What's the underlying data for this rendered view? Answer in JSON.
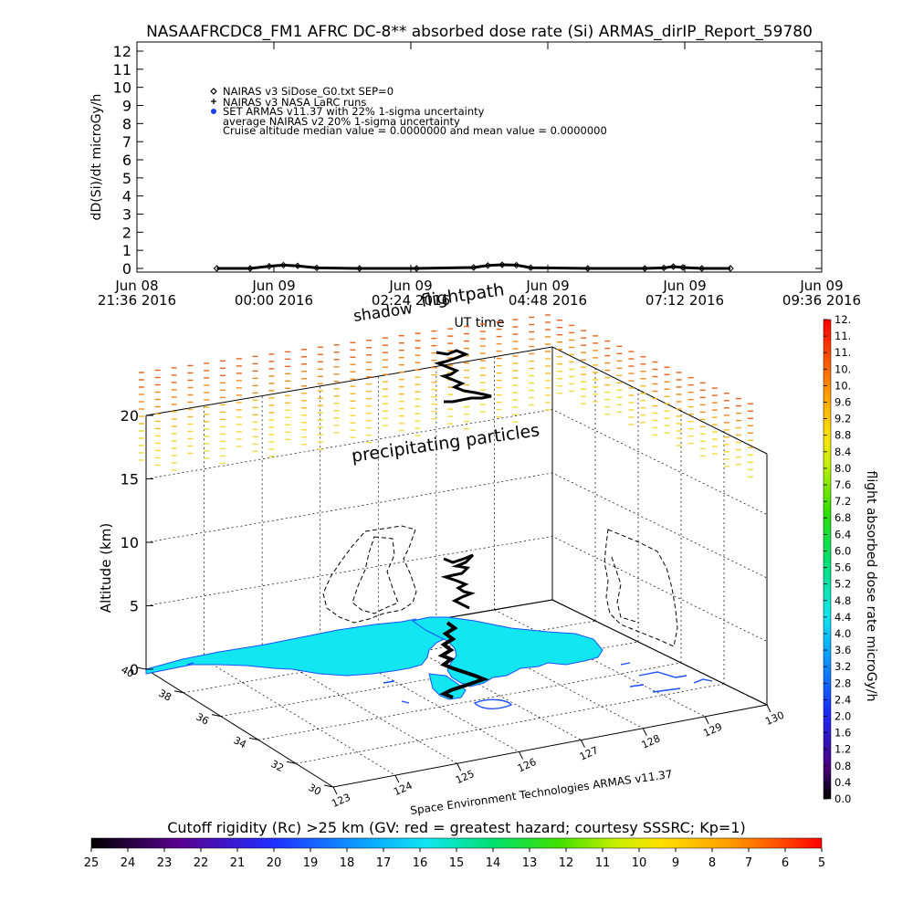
{
  "title": "NASAAFRCDC8_FM1 AFRC DC-8** absorbed dose rate (Si) ARMAS_dirIP_Report_59780",
  "top_panel": {
    "ylabel": "dD(Si)/dt microGy/h",
    "xlabel": "UT time",
    "legend": [
      "NAIRAS v3 SiDose_G0.txt SEP=0",
      "NAIRAS v3 NASA LaRC runs",
      "SET ARMAS v11.37 with 22% 1-sigma uncertainty",
      "average NAIRAS v2 20% 1-sigma uncertainty",
      "Cruise altitude median value = 0.0000000 and mean value = 0.0000000"
    ],
    "legend_markers": [
      "diamond",
      "plus",
      "dot"
    ],
    "legend_marker_colors": [
      "#000000",
      "#000000",
      "#1f3fff"
    ]
  },
  "scene_3d": {
    "zlabel": "Altitude (km)",
    "z_ticks": [
      "0",
      "5",
      "10",
      "15",
      "20"
    ],
    "lat_ticks": [
      "30",
      "32",
      "34",
      "36",
      "38",
      "40"
    ],
    "lon_ticks": [
      "123",
      "124",
      "125",
      "126",
      "127",
      "128",
      "129",
      "130"
    ],
    "annotations": {
      "shadow": "shadow",
      "flightpath": "flightpath",
      "precipitating": "precipitating particles",
      "credit": "Space Environment Technologies ARMAS v11.37"
    },
    "land_color": "#11e6f2",
    "coast_color": "#1a4fff"
  },
  "dose_colorbar": {
    "label": "flight absorbed dose rate microGy/h",
    "ticks": [
      "0.0",
      "0.4",
      "0.8",
      "1.2",
      "1.6",
      "2.0",
      "2.4",
      "2.8",
      "3.2",
      "3.6",
      "4.0",
      "4.4",
      "4.8",
      "5.2",
      "5.6",
      "6.0",
      "6.4",
      "6.8",
      "7.2",
      "7.6",
      "8.0",
      "8.4",
      "8.8",
      "9.2",
      "9.6",
      "10.",
      "10.",
      "11.",
      "11.",
      "12."
    ]
  },
  "rc_colorbar": {
    "label": "Cutoff rigidity (Rc) >25 km (GV: red = greatest hazard; courtesy SSSRC; Kp=1)",
    "ticks": [
      "25",
      "24",
      "23",
      "22",
      "21",
      "20",
      "19",
      "18",
      "17",
      "16",
      "15",
      "14",
      "13",
      "12",
      "11",
      "10",
      "9",
      "8",
      "7",
      "6",
      "5"
    ]
  },
  "chart_data": {
    "type": "line",
    "title": "NASAAFRCDC8_FM1 AFRC DC-8** absorbed dose rate (Si) ARMAS_dirIP_Report_59780",
    "xlabel": "UT time",
    "ylabel": "dD(Si)/dt microGy/h",
    "ylim": [
      0,
      12
    ],
    "y_ticks": [
      0,
      1,
      2,
      3,
      4,
      5,
      6,
      7,
      8,
      9,
      10,
      11,
      12
    ],
    "x_ticks": [
      "2016-06-08T21:36",
      "2016-06-09T00:00",
      "2016-06-09T02:24",
      "2016-06-09T04:48",
      "2016-06-09T07:12",
      "2016-06-09T09:36"
    ],
    "x_tick_labels": [
      [
        "Jun 08",
        "21:36 2016"
      ],
      [
        "Jun 09",
        "00:00 2016"
      ],
      [
        "Jun 09",
        "02:24 2016"
      ],
      [
        "Jun 09",
        "04:48 2016"
      ],
      [
        "Jun 09",
        "07:12 2016"
      ],
      [
        "Jun 09",
        "09:36 2016"
      ]
    ],
    "xlim": [
      "2016-06-08T21:36",
      "2016-06-09T09:36"
    ],
    "series": [
      {
        "marker": "diamond",
        "color": "#000000",
        "x": [
          "2016-06-08T23:00",
          "2016-06-08T23:35",
          "2016-06-08T23:55",
          "2016-06-09T00:10",
          "2016-06-09T00:25",
          "2016-06-09T00:45",
          "2016-06-09T01:30",
          "2016-06-09T02:30",
          "2016-06-09T03:30",
          "2016-06-09T03:45",
          "2016-06-09T04:00",
          "2016-06-09T04:15",
          "2016-06-09T04:30",
          "2016-06-09T05:30",
          "2016-06-09T06:30",
          "2016-06-09T06:50",
          "2016-06-09T07:00",
          "2016-06-09T07:10",
          "2016-06-09T07:30",
          "2016-06-09T08:00"
        ],
        "y": [
          0.0,
          0.0,
          0.12,
          0.18,
          0.14,
          0.03,
          0.0,
          0.0,
          0.05,
          0.16,
          0.2,
          0.18,
          0.04,
          0.0,
          0.0,
          0.03,
          0.1,
          0.05,
          0.0,
          0.0
        ]
      }
    ],
    "grid": false,
    "legend_position": "top-left"
  }
}
